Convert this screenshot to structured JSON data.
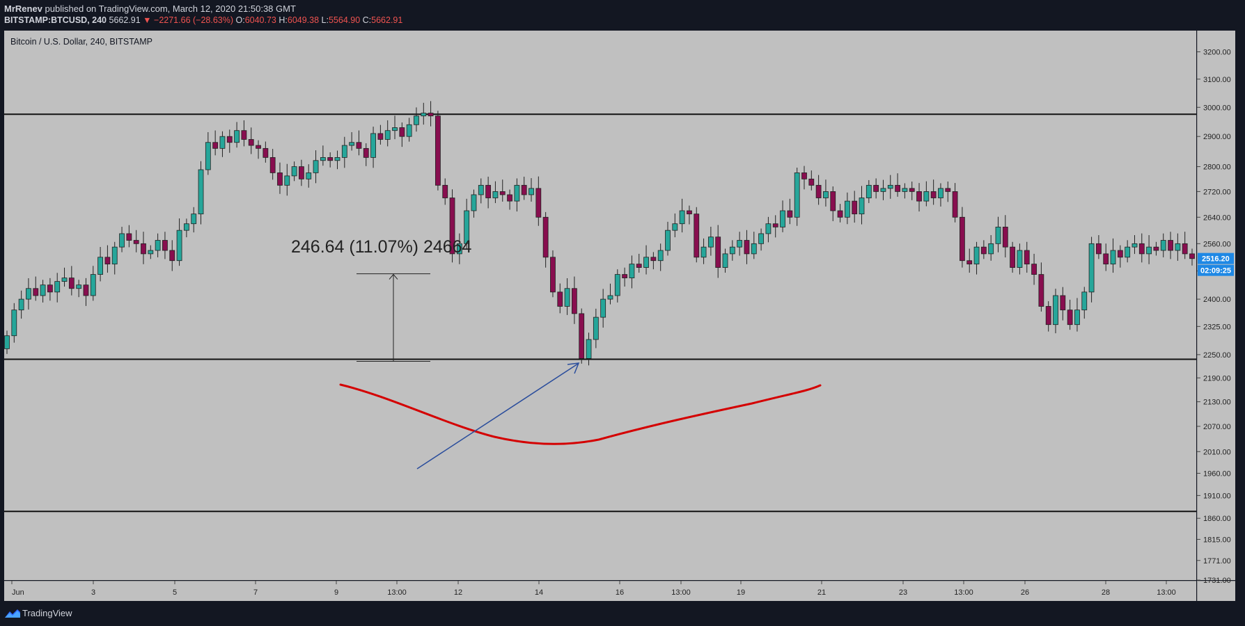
{
  "header": {
    "author": "MrRenev",
    "published_text": "published on TradingView.com, March 12, 2020 21:50:38 GMT",
    "symbol": "BITSTAMP:BTCUSD, 240",
    "last": "5662.91",
    "change": "−2271.66 (−28.63%)",
    "o_label": "O:",
    "o": "6040.73",
    "h_label": "H:",
    "h": "6049.38",
    "l_label": "L:",
    "l": "5564.90",
    "c_label": "C:",
    "c": "5662.91"
  },
  "footer": {
    "brand": "TradingView"
  },
  "colors": {
    "up": "#26a69a",
    "down": "#880e4f",
    "background": "#c0c0c0",
    "curve": "#d40000",
    "arrow": "#2a4d9c",
    "price_tag": "#1e88e5"
  },
  "chart_data": {
    "type": "candlestick",
    "title": "Bitcoin / U.S. Dollar, 240, BITSTAMP",
    "price_scale": "log",
    "ylim": [
      1731,
      3280
    ],
    "y_ticks": [
      "3200.00",
      "3100.00",
      "3000.00",
      "2900.00",
      "2800.00",
      "2720.00",
      "2640.00",
      "2560.00",
      "2480.00",
      "2400.00",
      "2325.00",
      "2250.00",
      "2190.00",
      "2130.00",
      "2070.00",
      "2010.00",
      "1960.00",
      "1910.00",
      "1860.00",
      "1815.00",
      "1771.00",
      "1731.00"
    ],
    "x_ticks": [
      "Jun",
      "3",
      "5",
      "7",
      "9",
      "13:00",
      "12",
      "14",
      "16",
      "13:00",
      "19",
      "21",
      "23",
      "13:00",
      "26",
      "28",
      "13:00"
    ],
    "last_price_label": "2516.20",
    "countdown_label": "02:09:25",
    "horizontal_lines": [
      2976,
      2238,
      1875
    ],
    "measure_label": "246.64 (11.07%) 24664",
    "measure_range": [
      2238,
      2472
    ],
    "candle_closes": [
      2300,
      2370,
      2400,
      2430,
      2410,
      2440,
      2420,
      2450,
      2460,
      2430,
      2440,
      2410,
      2470,
      2520,
      2500,
      2550,
      2590,
      2570,
      2560,
      2530,
      2540,
      2570,
      2540,
      2510,
      2600,
      2620,
      2650,
      2790,
      2880,
      2860,
      2900,
      2880,
      2920,
      2890,
      2870,
      2860,
      2830,
      2780,
      2740,
      2770,
      2800,
      2760,
      2780,
      2820,
      2830,
      2820,
      2830,
      2870,
      2880,
      2860,
      2830,
      2910,
      2890,
      2920,
      2930,
      2900,
      2940,
      2970,
      2980,
      2970,
      2740,
      2700,
      2530,
      2560,
      2660,
      2710,
      2740,
      2700,
      2720,
      2710,
      2690,
      2740,
      2710,
      2730,
      2640,
      2520,
      2420,
      2380,
      2430,
      2360,
      2240,
      2290,
      2350,
      2400,
      2410,
      2470,
      2460,
      2500,
      2490,
      2520,
      2510,
      2540,
      2600,
      2620,
      2660,
      2650,
      2520,
      2550,
      2580,
      2490,
      2530,
      2550,
      2570,
      2530,
      2560,
      2590,
      2620,
      2610,
      2660,
      2640,
      2780,
      2760,
      2740,
      2700,
      2720,
      2660,
      2640,
      2690,
      2650,
      2700,
      2740,
      2720,
      2730,
      2740,
      2720,
      2730,
      2720,
      2690,
      2720,
      2700,
      2730,
      2720,
      2640,
      2510,
      2500,
      2550,
      2530,
      2560,
      2610,
      2550,
      2490,
      2540,
      2500,
      2470,
      2380,
      2330,
      2410,
      2370,
      2330,
      2370,
      2420,
      2560,
      2530,
      2500,
      2540,
      2520,
      2550,
      2560,
      2530,
      2550,
      2540,
      2570,
      2540,
      2560,
      2530,
      2516
    ]
  }
}
